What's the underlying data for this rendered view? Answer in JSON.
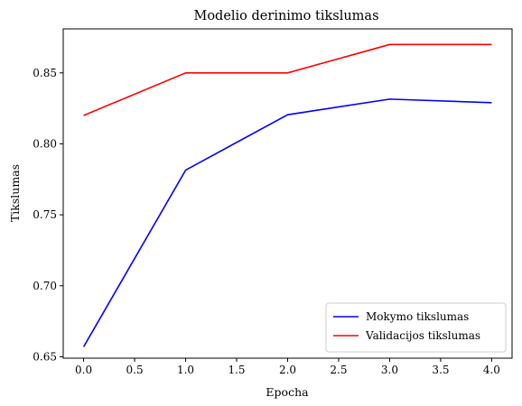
{
  "chart_data": {
    "type": "line",
    "title": "Modelio derinimo tikslumas",
    "xlabel": "Epocha",
    "ylabel": "Tikslumas",
    "x": [
      0,
      1,
      2,
      3,
      4
    ],
    "xlim": [
      -0.2,
      4.2
    ],
    "ylim": [
      0.649,
      0.881
    ],
    "xticks": [
      0.0,
      0.5,
      1.0,
      1.5,
      2.0,
      2.5,
      3.0,
      3.5,
      4.0
    ],
    "xtick_labels": [
      "0.0",
      "0.5",
      "1.0",
      "1.5",
      "2.0",
      "2.5",
      "3.0",
      "3.5",
      "4.0"
    ],
    "yticks": [
      0.65,
      0.7,
      0.75,
      0.8,
      0.85
    ],
    "ytick_labels": [
      "0.65",
      "0.70",
      "0.75",
      "0.80",
      "0.85"
    ],
    "grid": false,
    "legend_position": "bottom-right",
    "series": [
      {
        "name": "Mokymo tikslumas",
        "color": "#0000ff",
        "values": [
          0.657,
          0.7815,
          0.8205,
          0.8315,
          0.829
        ]
      },
      {
        "name": "Validacijos tikslumas",
        "color": "#ff0000",
        "values": [
          0.82,
          0.85,
          0.85,
          0.87,
          0.87
        ]
      }
    ]
  }
}
